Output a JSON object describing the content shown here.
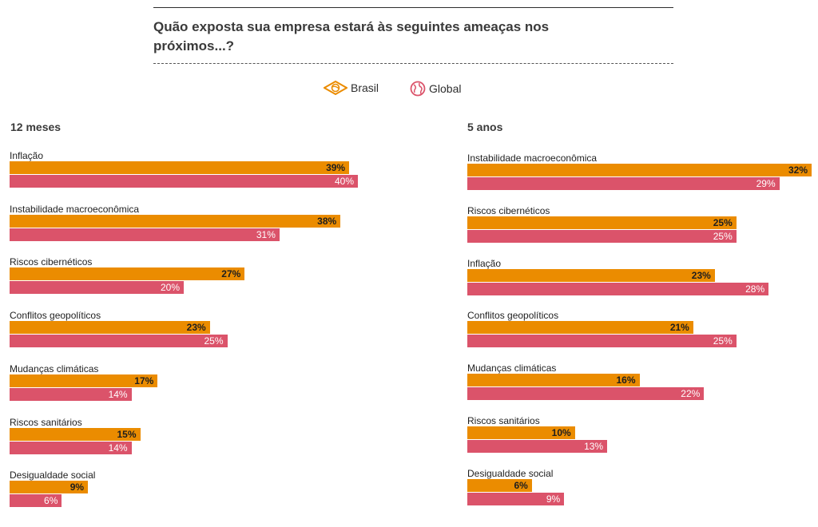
{
  "header": {
    "title": "Quão exposta sua empresa estará às seguintes ameaças nos próximos...?"
  },
  "legend": [
    {
      "label": "Brasil",
      "icon": "brazil-diamond-icon",
      "color": "#eb8c00"
    },
    {
      "label": "Global",
      "icon": "globe-icon",
      "color": "#db536a"
    }
  ],
  "colors": {
    "brasil": "#eb8c00",
    "global": "#db536a"
  },
  "chart_data": [
    {
      "type": "bar",
      "orientation": "horizontal",
      "title": "12 meses",
      "categories": [
        "Inflação",
        "Instabilidade macroeconômica",
        "Riscos cibernéticos",
        "Conflitos geopolíticos",
        "Mudanças climáticas",
        "Riscos sanitários",
        "Desigualdade social"
      ],
      "series": [
        {
          "name": "Brasil",
          "values": [
            39,
            38,
            27,
            23,
            17,
            15,
            9
          ],
          "labels": [
            "39%",
            "38%",
            "27%",
            "23%",
            "17%",
            "15%",
            "9%"
          ]
        },
        {
          "name": "Global",
          "values": [
            40,
            31,
            20,
            25,
            14,
            14,
            6
          ],
          "labels": [
            "40%",
            "31%",
            "20%",
            "25%",
            "14%",
            "14%",
            "6%"
          ]
        }
      ]
    },
    {
      "type": "bar",
      "orientation": "horizontal",
      "title": "5 anos",
      "categories": [
        "Instabilidade macroeconômica",
        "Riscos cibernéticos",
        "Inflação",
        "Conflitos geopolíticos",
        "Mudanças climáticas",
        "Riscos sanitários",
        "Desigualdade social"
      ],
      "series": [
        {
          "name": "Brasil",
          "values": [
            32,
            25,
            23,
            21,
            16,
            10,
            6
          ],
          "labels": [
            "32%",
            "25%",
            "23%",
            "21%",
            "16%",
            "10%",
            "6%"
          ]
        },
        {
          "name": "Global",
          "values": [
            29,
            25,
            28,
            25,
            22,
            13,
            9
          ],
          "labels": [
            "29%",
            "25%",
            "28%",
            "25%",
            "22%",
            "13%",
            "9%"
          ]
        }
      ]
    }
  ]
}
